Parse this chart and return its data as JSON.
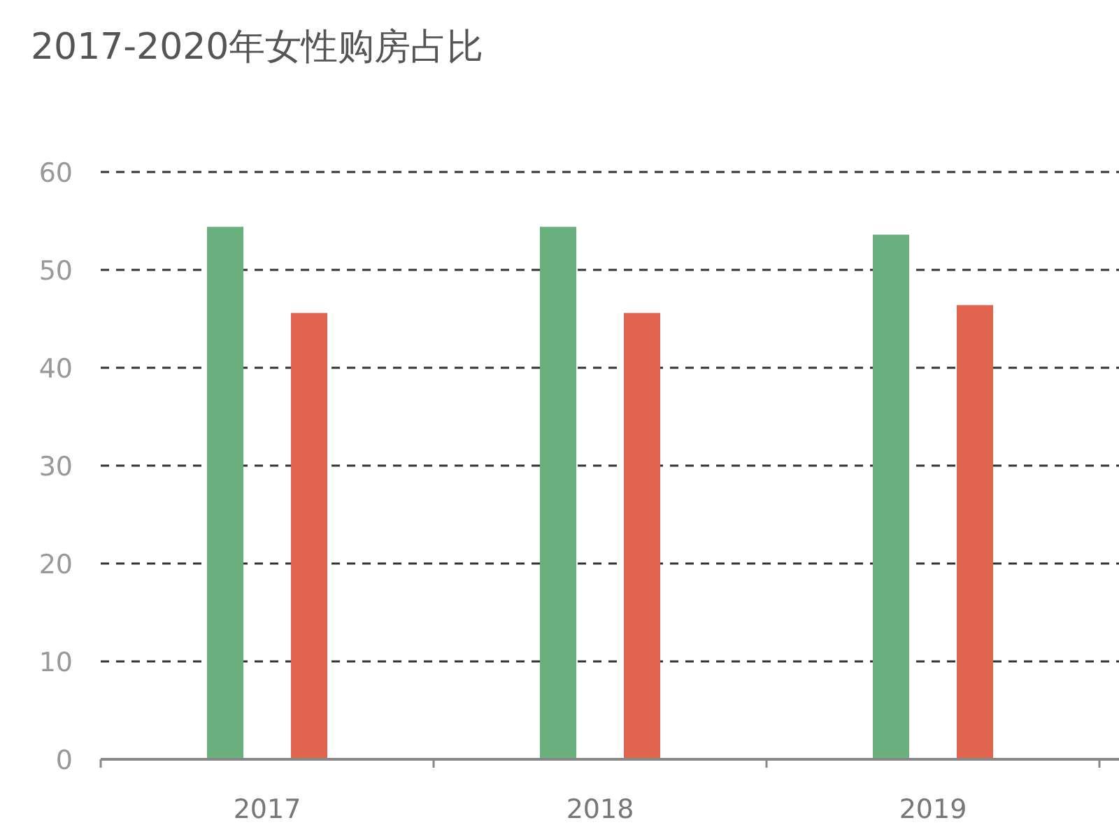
{
  "chart_data": {
    "type": "bar",
    "title": "2017-2020年女性购房占比",
    "categories": [
      "2017",
      "2018",
      "2019"
    ],
    "series": [
      {
        "color": "#6aaf7e",
        "values": [
          54.4,
          54.4,
          53.6
        ]
      },
      {
        "color": "#e0644e",
        "values": [
          45.6,
          45.6,
          46.4
        ]
      }
    ],
    "ylim": [
      0,
      60
    ],
    "yticks": [
      0,
      10,
      20,
      30,
      40,
      50,
      60
    ],
    "grid": "y"
  }
}
